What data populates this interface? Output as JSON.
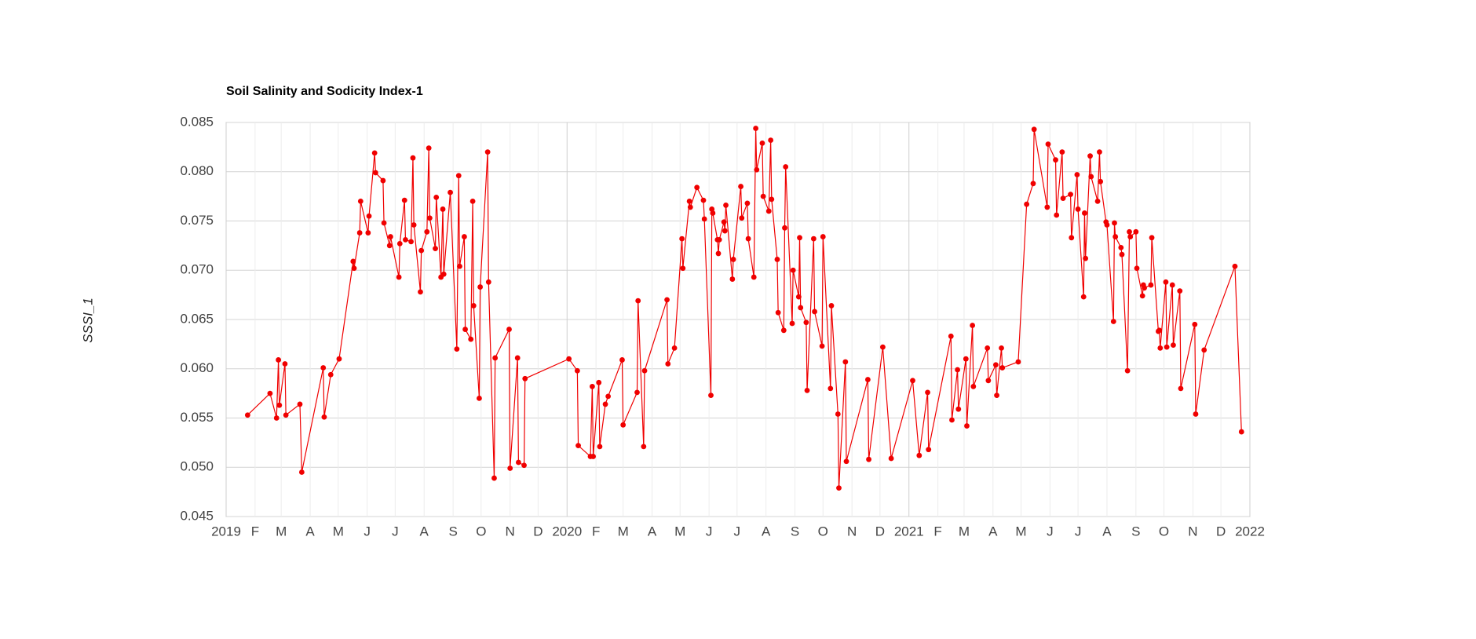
{
  "chart_data": {
    "type": "line",
    "title": "Soil Salinity and Sodicity Index-1",
    "ylabel": "SSSI_1",
    "x": [
      "2019-01-24",
      "2019-02-17",
      "2019-02-24",
      "2019-02-26",
      "2019-02-27",
      "2019-03-05",
      "2019-03-06",
      "2019-03-21",
      "2019-03-23",
      "2019-04-15",
      "2019-04-16",
      "2019-04-23",
      "2019-05-02",
      "2019-05-17",
      "2019-05-18",
      "2019-05-24",
      "2019-05-25",
      "2019-06-02",
      "2019-06-03",
      "2019-06-09",
      "2019-06-10",
      "2019-06-18",
      "2019-06-19",
      "2019-06-25",
      "2019-06-26",
      "2019-07-05",
      "2019-07-06",
      "2019-07-11",
      "2019-07-12",
      "2019-07-18",
      "2019-07-20",
      "2019-07-21",
      "2019-07-28",
      "2019-07-29",
      "2019-08-04",
      "2019-08-06",
      "2019-08-07",
      "2019-08-13",
      "2019-08-14",
      "2019-08-19",
      "2019-08-21",
      "2019-08-22",
      "2019-08-29",
      "2019-09-05",
      "2019-09-07",
      "2019-09-08",
      "2019-09-13",
      "2019-09-14",
      "2019-09-20",
      "2019-09-22",
      "2019-09-23",
      "2019-09-29",
      "2019-09-30",
      "2019-10-08",
      "2019-10-09",
      "2019-10-15",
      "2019-10-16",
      "2019-10-31",
      "2019-11-01",
      "2019-11-09",
      "2019-11-10",
      "2019-11-16",
      "2019-11-17",
      "2020-01-03",
      "2020-01-12",
      "2020-01-13",
      "2020-01-26",
      "2020-01-28",
      "2020-01-29",
      "2020-02-04",
      "2020-02-05",
      "2020-02-11",
      "2020-02-14",
      "2020-02-29",
      "2020-03-01",
      "2020-03-16",
      "2020-03-17",
      "2020-03-23",
      "2020-03-24",
      "2020-04-17",
      "2020-04-18",
      "2020-04-25",
      "2020-05-03",
      "2020-05-04",
      "2020-05-11",
      "2020-05-12",
      "2020-05-19",
      "2020-05-26",
      "2020-05-27",
      "2020-06-03",
      "2020-06-04",
      "2020-06-05",
      "2020-06-10",
      "2020-06-11",
      "2020-06-12",
      "2020-06-17",
      "2020-06-18",
      "2020-06-19",
      "2020-06-26",
      "2020-06-27",
      "2020-07-05",
      "2020-07-06",
      "2020-07-12",
      "2020-07-13",
      "2020-07-19",
      "2020-07-21",
      "2020-07-22",
      "2020-07-28",
      "2020-07-29",
      "2020-08-04",
      "2020-08-06",
      "2020-08-07",
      "2020-08-13",
      "2020-08-14",
      "2020-08-20",
      "2020-08-21",
      "2020-08-22",
      "2020-08-29",
      "2020-08-30",
      "2020-09-05",
      "2020-09-06",
      "2020-09-07",
      "2020-09-13",
      "2020-09-14",
      "2020-09-21",
      "2020-09-22",
      "2020-09-30",
      "2020-10-01",
      "2020-10-09",
      "2020-10-10",
      "2020-10-17",
      "2020-10-18",
      "2020-10-25",
      "2020-10-26",
      "2020-11-18",
      "2020-11-19",
      "2020-12-04",
      "2020-12-13",
      "2021-01-05",
      "2021-01-12",
      "2021-01-21",
      "2021-01-22",
      "2021-02-15",
      "2021-02-16",
      "2021-02-22",
      "2021-02-23",
      "2021-03-03",
      "2021-03-04",
      "2021-03-10",
      "2021-03-11",
      "2021-03-26",
      "2021-03-27",
      "2021-04-04",
      "2021-04-05",
      "2021-04-10",
      "2021-04-11",
      "2021-04-28",
      "2021-05-07",
      "2021-05-14",
      "2021-05-15",
      "2021-05-29",
      "2021-05-30",
      "2021-06-07",
      "2021-06-08",
      "2021-06-14",
      "2021-06-15",
      "2021-06-23",
      "2021-06-24",
      "2021-06-30",
      "2021-07-01",
      "2021-07-07",
      "2021-07-08",
      "2021-07-09",
      "2021-07-14",
      "2021-07-15",
      "2021-07-22",
      "2021-07-24",
      "2021-07-25",
      "2021-07-31",
      "2021-08-01",
      "2021-08-08",
      "2021-08-09",
      "2021-08-10",
      "2021-08-16",
      "2021-08-17",
      "2021-08-23",
      "2021-08-25",
      "2021-08-26",
      "2021-09-01",
      "2021-09-02",
      "2021-09-08",
      "2021-09-09",
      "2021-09-10",
      "2021-09-17",
      "2021-09-18",
      "2021-09-25",
      "2021-09-26",
      "2021-09-27",
      "2021-10-03",
      "2021-10-04",
      "2021-10-10",
      "2021-10-11",
      "2021-10-18",
      "2021-10-19",
      "2021-11-03",
      "2021-11-04",
      "2021-11-13",
      "2021-12-16",
      "2021-12-23"
    ],
    "series": [
      {
        "name": "SSSI_1",
        "color": "#f00000",
        "values": [
          0.0553,
          0.0575,
          0.055,
          0.0609,
          0.0563,
          0.0605,
          0.0553,
          0.0564,
          0.0495,
          0.0601,
          0.0551,
          0.0594,
          0.061,
          0.0709,
          0.0702,
          0.0738,
          0.077,
          0.0738,
          0.0755,
          0.0819,
          0.0799,
          0.0791,
          0.0748,
          0.0725,
          0.0734,
          0.0693,
          0.0727,
          0.0771,
          0.0731,
          0.0729,
          0.0814,
          0.0746,
          0.0678,
          0.072,
          0.0739,
          0.0824,
          0.0753,
          0.0722,
          0.0774,
          0.0693,
          0.0762,
          0.0696,
          0.0779,
          0.062,
          0.0796,
          0.0704,
          0.0734,
          0.064,
          0.063,
          0.077,
          0.0664,
          0.057,
          0.0683,
          0.082,
          0.0688,
          0.0489,
          0.0611,
          0.064,
          0.0499,
          0.0611,
          0.0505,
          0.0502,
          0.059,
          0.061,
          0.0598,
          0.0522,
          0.0511,
          0.0582,
          0.0511,
          0.0586,
          0.0521,
          0.0564,
          0.0572,
          0.0609,
          0.0543,
          0.0576,
          0.0669,
          0.0521,
          0.0598,
          0.067,
          0.0605,
          0.0621,
          0.0732,
          0.0702,
          0.077,
          0.0764,
          0.0784,
          0.0771,
          0.0752,
          0.0573,
          0.0762,
          0.0758,
          0.0731,
          0.0717,
          0.0731,
          0.0749,
          0.074,
          0.0766,
          0.0691,
          0.0711,
          0.0785,
          0.0753,
          0.0768,
          0.0732,
          0.0693,
          0.0844,
          0.0802,
          0.0829,
          0.0775,
          0.076,
          0.0832,
          0.0772,
          0.0711,
          0.0657,
          0.0639,
          0.0743,
          0.0805,
          0.0646,
          0.07,
          0.0673,
          0.0733,
          0.0662,
          0.0647,
          0.0578,
          0.0732,
          0.0658,
          0.0623,
          0.0734,
          0.058,
          0.0664,
          0.0554,
          0.0479,
          0.0607,
          0.0506,
          0.0589,
          0.0508,
          0.0622,
          0.0509,
          0.0588,
          0.0512,
          0.0576,
          0.0518,
          0.0633,
          0.0548,
          0.0599,
          0.0559,
          0.061,
          0.0542,
          0.0644,
          0.0582,
          0.0621,
          0.0588,
          0.0604,
          0.0573,
          0.0621,
          0.0601,
          0.0607,
          0.0767,
          0.0788,
          0.0843,
          0.0764,
          0.0828,
          0.0812,
          0.0756,
          0.082,
          0.0773,
          0.0777,
          0.0733,
          0.0797,
          0.0762,
          0.0673,
          0.0758,
          0.0712,
          0.0816,
          0.0795,
          0.077,
          0.082,
          0.079,
          0.0749,
          0.0746,
          0.0648,
          0.0748,
          0.0734,
          0.0723,
          0.0716,
          0.0598,
          0.0739,
          0.0734,
          0.0739,
          0.0702,
          0.0674,
          0.0685,
          0.0682,
          0.0685,
          0.0733,
          0.0638,
          0.0639,
          0.0621,
          0.0688,
          0.0622,
          0.0685,
          0.0624,
          0.0679,
          0.058,
          0.0645,
          0.0554,
          0.0619,
          0.0704,
          0.0536
        ]
      }
    ],
    "xlim": [
      "2019-01-01",
      "2022-01-01"
    ],
    "xticks": [
      {
        "value": "2019-01-01",
        "label": "2019"
      },
      {
        "value": "2019-02-01",
        "label": "F"
      },
      {
        "value": "2019-03-01",
        "label": "M"
      },
      {
        "value": "2019-04-01",
        "label": "A"
      },
      {
        "value": "2019-05-01",
        "label": "M"
      },
      {
        "value": "2019-06-01",
        "label": "J"
      },
      {
        "value": "2019-07-01",
        "label": "J"
      },
      {
        "value": "2019-08-01",
        "label": "A"
      },
      {
        "value": "2019-09-01",
        "label": "S"
      },
      {
        "value": "2019-10-01",
        "label": "O"
      },
      {
        "value": "2019-11-01",
        "label": "N"
      },
      {
        "value": "2019-12-01",
        "label": "D"
      },
      {
        "value": "2020-01-01",
        "label": "2020"
      },
      {
        "value": "2020-02-01",
        "label": "F"
      },
      {
        "value": "2020-03-01",
        "label": "M"
      },
      {
        "value": "2020-04-01",
        "label": "A"
      },
      {
        "value": "2020-05-01",
        "label": "M"
      },
      {
        "value": "2020-06-01",
        "label": "J"
      },
      {
        "value": "2020-07-01",
        "label": "J"
      },
      {
        "value": "2020-08-01",
        "label": "A"
      },
      {
        "value": "2020-09-01",
        "label": "S"
      },
      {
        "value": "2020-10-01",
        "label": "O"
      },
      {
        "value": "2020-11-01",
        "label": "N"
      },
      {
        "value": "2020-12-01",
        "label": "D"
      },
      {
        "value": "2021-01-01",
        "label": "2021"
      },
      {
        "value": "2021-02-01",
        "label": "F"
      },
      {
        "value": "2021-03-01",
        "label": "M"
      },
      {
        "value": "2021-04-01",
        "label": "A"
      },
      {
        "value": "2021-05-01",
        "label": "M"
      },
      {
        "value": "2021-06-01",
        "label": "J"
      },
      {
        "value": "2021-07-01",
        "label": "J"
      },
      {
        "value": "2021-08-01",
        "label": "A"
      },
      {
        "value": "2021-09-01",
        "label": "S"
      },
      {
        "value": "2021-10-01",
        "label": "O"
      },
      {
        "value": "2021-11-01",
        "label": "N"
      },
      {
        "value": "2021-12-01",
        "label": "D"
      },
      {
        "value": "2022-01-01",
        "label": "2022"
      }
    ],
    "ylim": [
      0.045,
      0.085
    ],
    "yticks": [
      0.045,
      {
        "value": 0.05,
        "label": "0.050"
      },
      0.055,
      {
        "value": 0.06,
        "label": "0.060"
      },
      0.065,
      {
        "value": 0.07,
        "label": "0.070"
      },
      0.075,
      {
        "value": 0.08,
        "label": "0.080"
      },
      0.085
    ],
    "grid": true
  }
}
